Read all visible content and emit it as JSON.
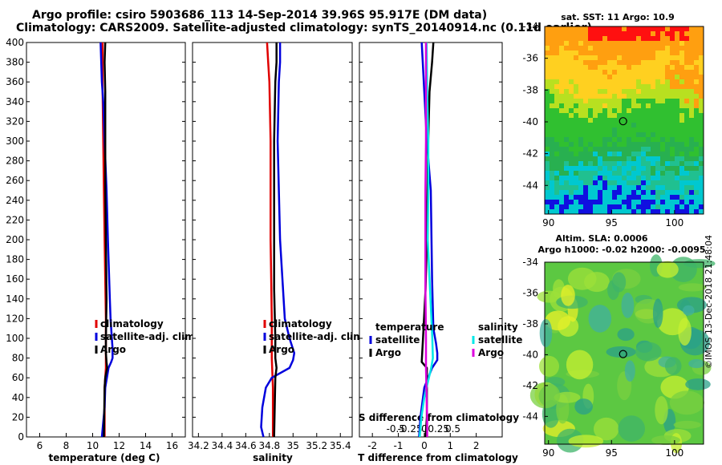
{
  "header": {
    "title_line1": "Argo profile: csiro 5903686_113 14-Sep-2014 39.96S 95.917E (DM data)",
    "title_line2": "Climatology: CARS2009. Satellite-adjusted climatology: synTS_20140914.nc (0.11d earlier)"
  },
  "colors": {
    "climatology": "#e00000",
    "satellite": "#0000dd",
    "argo": "#000000",
    "s_satellite": "#00e8e8",
    "s_argo": "#dd00dd",
    "marker": "#000000"
  },
  "chart_data": [
    {
      "type": "line",
      "name": "temperature-profile",
      "xlabel": "temperature (deg C)",
      "ylabel": "",
      "xlim": [
        5,
        17
      ],
      "ylim": [
        400,
        0
      ],
      "xticks": [
        "6",
        "8",
        "10",
        "12",
        "14",
        "16"
      ],
      "yticks": [
        "0",
        "20",
        "40",
        "60",
        "80",
        "100",
        "120",
        "140",
        "160",
        "180",
        "200",
        "220",
        "240",
        "260",
        "280",
        "300",
        "320",
        "340",
        "360",
        "380",
        "400"
      ],
      "legend": [
        "climatology",
        "satellite-adj. clim.",
        "Argo"
      ],
      "series": [
        {
          "name": "climatology",
          "depth": [
            0,
            50,
            70,
            78,
            90,
            120,
            160,
            200,
            250,
            300,
            350,
            400
          ],
          "values": [
            10.9,
            10.9,
            11.0,
            11.0,
            11.0,
            11.0,
            10.95,
            10.9,
            10.85,
            10.8,
            10.75,
            10.75
          ]
        },
        {
          "name": "satellite-adj. clim.",
          "depth": [
            0,
            30,
            50,
            70,
            76,
            80,
            90,
            100,
            120,
            140,
            160,
            200,
            250,
            300,
            340,
            360,
            380,
            400
          ],
          "values": [
            10.7,
            10.9,
            10.95,
            11.2,
            11.4,
            11.5,
            11.5,
            11.45,
            11.35,
            11.3,
            11.25,
            11.15,
            11.05,
            10.9,
            10.8,
            10.7,
            10.65,
            10.6
          ]
        },
        {
          "name": "Argo",
          "depth": [
            0,
            50,
            60,
            70,
            76,
            85,
            100,
            140,
            200,
            250,
            300,
            350,
            380,
            400
          ],
          "values": [
            10.85,
            10.9,
            10.95,
            11.1,
            11.05,
            11.0,
            11.0,
            11.05,
            11.0,
            10.95,
            10.95,
            10.95,
            10.9,
            10.95
          ]
        }
      ]
    },
    {
      "type": "line",
      "name": "salinity-profile",
      "xlabel": "salinity",
      "ylabel": "",
      "xlim": [
        34.15,
        35.5
      ],
      "ylim": [
        400,
        0
      ],
      "xticks": [
        "34.2",
        "34.4",
        "34.6",
        "34.8",
        "35",
        "35.2",
        "35.4"
      ],
      "legend": [
        "climatology",
        "satellite-adj. clim.",
        "Argo"
      ],
      "series": [
        {
          "name": "climatology",
          "depth": [
            0,
            50,
            80,
            120,
            200,
            300,
            360,
            380,
            400
          ],
          "values": [
            34.83,
            34.83,
            34.82,
            34.82,
            34.81,
            34.81,
            34.8,
            34.79,
            34.78
          ]
        },
        {
          "name": "satellite-adj. clim.",
          "depth": [
            0,
            10,
            30,
            50,
            60,
            70,
            78,
            85,
            100,
            120,
            200,
            300,
            360,
            380,
            400
          ],
          "values": [
            34.75,
            34.73,
            34.74,
            34.77,
            34.82,
            34.97,
            35.0,
            35.01,
            34.97,
            34.93,
            34.89,
            34.87,
            34.88,
            34.89,
            34.89
          ]
        },
        {
          "name": "Argo",
          "depth": [
            0,
            60,
            70,
            80,
            100,
            150,
            200,
            300,
            360,
            380,
            400
          ],
          "values": [
            34.84,
            34.85,
            34.86,
            34.85,
            34.85,
            34.84,
            34.84,
            34.84,
            34.85,
            34.86,
            34.86
          ]
        }
      ]
    },
    {
      "type": "line",
      "name": "difference-profile",
      "xlabel": "T difference from climatology",
      "xlim": [
        -2.5,
        3
      ],
      "ylim": [
        400,
        0
      ],
      "xticks": [
        "-2",
        "-1",
        "0",
        "1",
        "2"
      ],
      "top_axis_label": "S difference from climatology",
      "top_xticks": [
        "-0.5",
        "-0.25",
        "0",
        "0.25",
        "0.5"
      ],
      "legend_left_title": "temperature",
      "legend_left": [
        "satellite",
        "Argo"
      ],
      "legend_right_title": "salinity",
      "legend_right": [
        "satellite",
        "Argo"
      ],
      "series": [
        {
          "name": "T satellite",
          "depth": [
            0,
            20,
            50,
            70,
            78,
            85,
            95,
            110,
            160,
            250,
            300,
            350,
            400
          ],
          "values": [
            -0.2,
            -0.15,
            0.0,
            0.3,
            0.5,
            0.5,
            0.45,
            0.35,
            0.3,
            0.25,
            0.1,
            0.0,
            -0.1
          ]
        },
        {
          "name": "T Argo",
          "depth": [
            0,
            20,
            50,
            70,
            76,
            100,
            150,
            200,
            300,
            350,
            380,
            400
          ],
          "values": [
            0.05,
            0.1,
            0.1,
            0.1,
            -0.1,
            -0.05,
            0.05,
            0.1,
            0.15,
            0.2,
            0.3,
            0.35
          ]
        },
        {
          "name": "S satellite",
          "depth": [
            0,
            20,
            40,
            70,
            80,
            100,
            150,
            200,
            250,
            300,
            350,
            400
          ],
          "values": [
            -0.08,
            -0.05,
            0.0,
            0.12,
            0.15,
            0.14,
            0.1,
            0.06,
            0.07,
            0.07,
            0.05,
            0.04
          ]
        },
        {
          "name": "S Argo",
          "depth": [
            0,
            20,
            40,
            70,
            80,
            100,
            150,
            200,
            250,
            300,
            350,
            400
          ],
          "values": [
            0.05,
            0.05,
            0.04,
            0.03,
            0.03,
            0.03,
            0.02,
            0.02,
            0.02,
            0.03,
            0.03,
            0.03
          ]
        }
      ]
    },
    {
      "type": "heatmap",
      "name": "sst-map",
      "title": "sat. SST: 11 Argo: 10.9",
      "xlim": [
        89.7,
        102.3
      ],
      "ylim": [
        -45.8,
        -34
      ],
      "xticks": [
        "90",
        "95",
        "100"
      ],
      "yticks": [
        "-34",
        "-36",
        "-38",
        "-40",
        "-42",
        "-44"
      ],
      "profile_position": [
        95.917,
        -39.96
      ]
    },
    {
      "type": "heatmap",
      "name": "sla-map",
      "title_line1": "Altim. SLA: 0.0006",
      "title_line2": "Argo h1000: -0.02 h2000: -0.0095",
      "xlim": [
        89.7,
        102.3
      ],
      "ylim": [
        -45.8,
        -34
      ],
      "xticks": [
        "90",
        "95",
        "100"
      ],
      "yticks": [
        "-34",
        "-36",
        "-38",
        "-40",
        "-42",
        "-44"
      ],
      "profile_position": [
        95.917,
        -39.96
      ]
    }
  ],
  "footer": {
    "stamp": "©IMOS 13-Dec-2018 21:48:04"
  }
}
